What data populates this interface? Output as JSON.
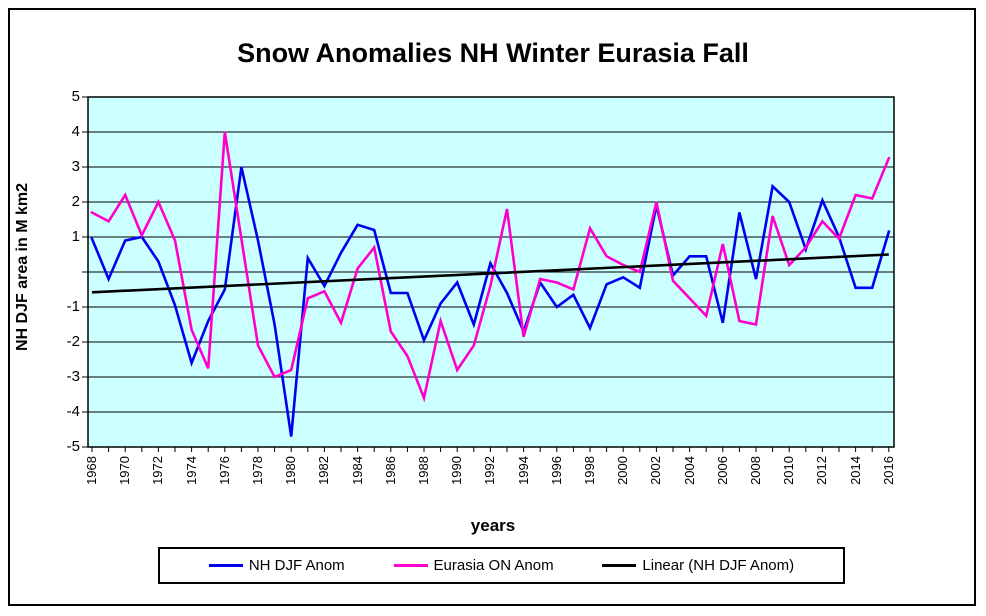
{
  "title": "Snow Anomalies NH Winter Eurasia Fall",
  "chart_data": {
    "type": "line",
    "title": "Snow Anomalies NH Winter Eurasia Fall",
    "xlabel": "years",
    "ylabel": "NH DJF area  in M km2",
    "ylim": [
      -5,
      5
    ],
    "grid": true,
    "plot_bg": "#CCFFFF",
    "legend_position": "bottom",
    "ytick_labels": [
      "5",
      "4",
      "3",
      "2",
      "1",
      "",
      "-1",
      "-2",
      "-3",
      "-4",
      "-5"
    ],
    "xtick_labels": [
      "1968",
      "1970",
      "1972",
      "1974",
      "1976",
      "1978",
      "1980",
      "1982",
      "1984",
      "1986",
      "1988",
      "1990",
      "1992",
      "1994",
      "1996",
      "1998",
      "2000",
      "2002",
      "2004",
      "2006",
      "2008",
      "2010",
      "2012",
      "2014",
      "2016"
    ],
    "x": [
      1968,
      1969,
      1970,
      1971,
      1972,
      1973,
      1974,
      1975,
      1976,
      1977,
      1978,
      1979,
      1980,
      1981,
      1982,
      1983,
      1984,
      1985,
      1986,
      1987,
      1988,
      1989,
      1990,
      1991,
      1992,
      1993,
      1994,
      1995,
      1996,
      1997,
      1998,
      1999,
      2000,
      2001,
      2002,
      2003,
      2004,
      2005,
      2006,
      2007,
      2008,
      2009,
      2010,
      2011,
      2012,
      2013,
      2014,
      2015,
      2016
    ],
    "series": [
      {
        "name": "NH DJF Anom",
        "color": "#0000EE",
        "values": [
          0.95,
          -0.2,
          0.9,
          1.0,
          0.3,
          -0.95,
          -2.6,
          -1.4,
          -0.5,
          3.0,
          0.9,
          -1.5,
          -4.7,
          0.4,
          -0.4,
          0.55,
          1.35,
          1.2,
          -0.6,
          -0.6,
          -1.95,
          -0.9,
          -0.3,
          -1.5,
          0.25,
          -0.6,
          -1.7,
          -0.3,
          -1.0,
          -0.65,
          -1.6,
          -0.35,
          -0.15,
          -0.45,
          1.9,
          -0.1,
          0.45,
          0.45,
          -1.45,
          1.7,
          -0.2,
          2.45,
          2.0,
          0.65,
          2.05,
          1.0,
          -0.45,
          -0.45,
          1.15
        ]
      },
      {
        "name": "Eurasia ON Anom",
        "color": "#FF00CC",
        "values": [
          1.7,
          1.45,
          2.2,
          1.05,
          2.0,
          0.9,
          -1.65,
          -2.75,
          4.0,
          0.95,
          -2.1,
          -3.0,
          -2.8,
          -0.75,
          -0.55,
          -1.45,
          0.1,
          0.7,
          -1.7,
          -2.4,
          -3.6,
          -1.4,
          -2.8,
          -2.1,
          -0.4,
          1.8,
          -1.85,
          -0.2,
          -0.3,
          -0.5,
          1.25,
          0.45,
          0.2,
          0.0,
          2.0,
          -0.25,
          -0.75,
          -1.25,
          0.8,
          -1.4,
          -1.5,
          1.6,
          0.2,
          0.7,
          1.45,
          0.95,
          2.2,
          2.1,
          3.25
        ]
      },
      {
        "name": "Linear (NH DJF Anom)",
        "color": "#000000",
        "trend": true,
        "trend_endpoints": [
          -0.58,
          0.5
        ]
      }
    ]
  }
}
